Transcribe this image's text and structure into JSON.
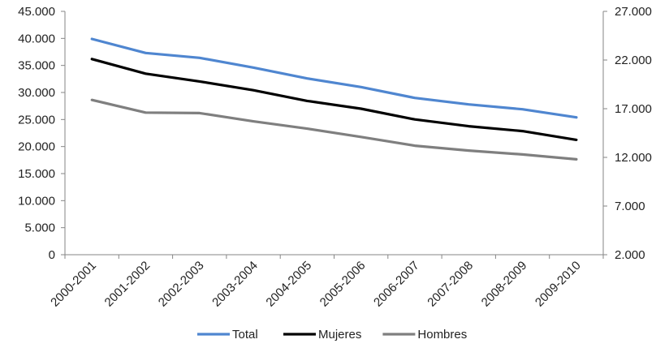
{
  "chart_data": {
    "type": "line",
    "title": "",
    "xlabel": "",
    "ylabel": "",
    "categories": [
      "2000-2001",
      "2001-2002",
      "2002-2003",
      "2003-2004",
      "2004-2005",
      "2005-2006",
      "2006-2007",
      "2007-2008",
      "2008-2009",
      "2009-2010"
    ],
    "y_left": {
      "lim": [
        0,
        45000
      ],
      "ticks": [
        0,
        5000,
        10000,
        15000,
        20000,
        25000,
        30000,
        35000,
        40000,
        45000
      ],
      "tick_labels": [
        "0",
        "5.000",
        "10.000",
        "15.000",
        "20.000",
        "25.000",
        "30.000",
        "35.000",
        "40.000",
        "45.000"
      ]
    },
    "y_right": {
      "lim": [
        2000,
        27000
      ],
      "ticks": [
        2000,
        7000,
        12000,
        17000,
        22000,
        27000
      ],
      "tick_labels": [
        "2.000",
        "7.000",
        "12.000",
        "17.000",
        "22.000",
        "27.000"
      ]
    },
    "series": [
      {
        "name": "Total",
        "axis": "left",
        "color": "#4f86d0",
        "values": [
          39900,
          37300,
          36400,
          34600,
          32600,
          31000,
          29000,
          27800,
          26900,
          25400
        ]
      },
      {
        "name": "Mujeres",
        "axis": "right",
        "color": "#000000",
        "values": [
          22100,
          20600,
          19800,
          18900,
          17800,
          17000,
          15900,
          15200,
          14700,
          13800
        ]
      },
      {
        "name": "Hombres",
        "axis": "right",
        "color": "#7f7f7f",
        "values": [
          17900,
          16600,
          16550,
          15700,
          14950,
          14100,
          13200,
          12700,
          12300,
          11800
        ]
      }
    ],
    "grid": false,
    "legend": {
      "position": "bottom"
    }
  }
}
